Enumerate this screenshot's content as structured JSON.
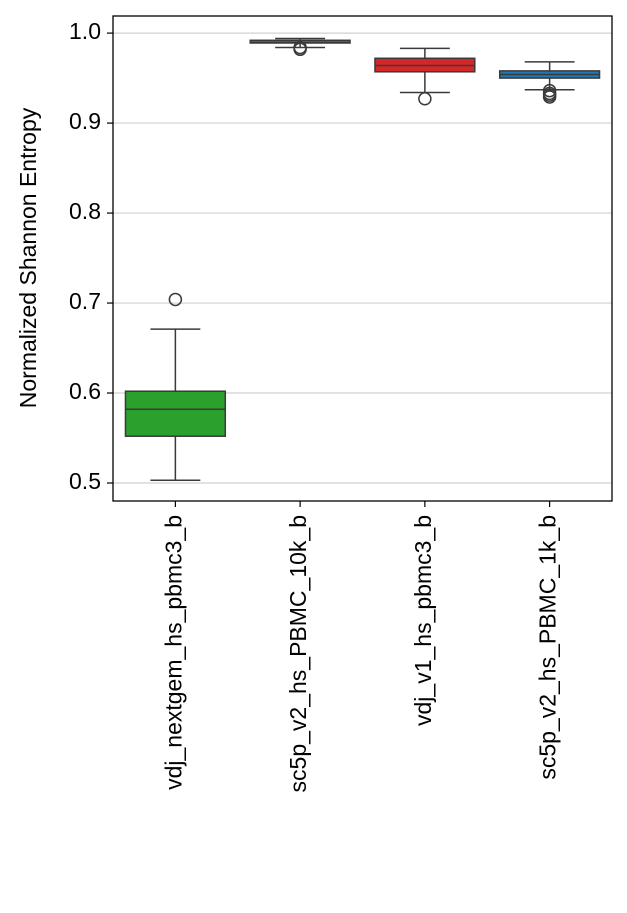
{
  "chart_data": {
    "type": "box",
    "y_label": "Normalized Shannon Entropy",
    "categories": [
      "vdj_nextgem_hs_pbmc3_b",
      "sc5p_v2_hs_PBMC_10k_b",
      "vdj_v1_hs_pbmc3_b",
      "sc5p_v2_hs_PBMC_1k_b"
    ],
    "boxes": [
      {
        "color": "#2ca02c",
        "min": 0.503,
        "q1": 0.552,
        "median": 0.582,
        "q3": 0.602,
        "max": 0.671,
        "outliers": [
          0.704
        ]
      },
      {
        "color": "#ff7f0e",
        "min": 0.984,
        "q1": 0.989,
        "median": 0.99,
        "q3": 0.992,
        "max": 0.994,
        "outliers": [
          0.984,
          0.982
        ]
      },
      {
        "color": "#d62728",
        "min": 0.934,
        "q1": 0.957,
        "median": 0.964,
        "q3": 0.972,
        "max": 0.983,
        "outliers": [
          0.927
        ]
      },
      {
        "color": "#1f77b4",
        "min": 0.937,
        "q1": 0.95,
        "median": 0.954,
        "q3": 0.958,
        "max": 0.968,
        "outliers": [
          0.936,
          0.933,
          0.931,
          0.929
        ]
      }
    ],
    "ylim": [
      0.48,
      1.019
    ],
    "yticks": [
      0.5,
      0.6,
      0.7,
      0.8,
      0.9,
      {
        "value": 1.0,
        "label": "1.0"
      }
    ],
    "grid": true
  }
}
